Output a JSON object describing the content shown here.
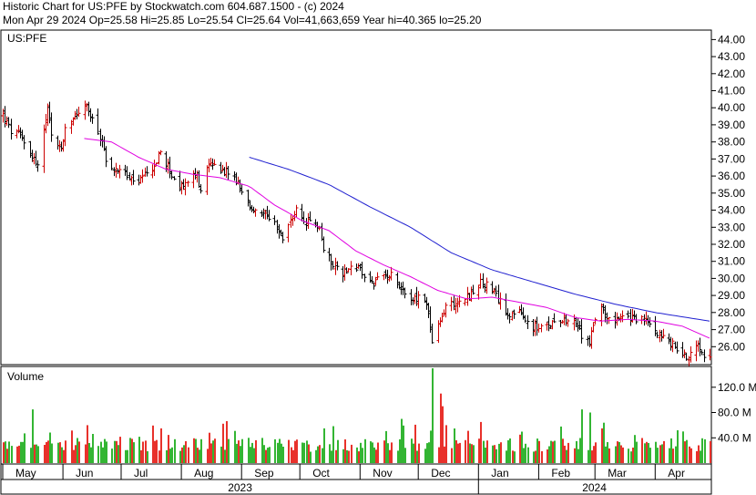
{
  "header": {
    "line1": "Historic Chart for US:PFE by Stockwatch.com 604.687.1500 - (c) 2024",
    "line2": "Mon Apr 29 2024   Op=25.58   Hi=25.85   Lo=25.54   Cl=25.64   Vol=41,663,659   Year hi=40.365   lo=25.20"
  },
  "colors": {
    "up_bar": "#cc0000",
    "down_bar": "#000000",
    "vol_up": "#e8312b",
    "vol_down": "#33b533",
    "ma_short": "#e000e0",
    "ma_long": "#2020d0",
    "frame": "#000000"
  },
  "chart_data": [
    {
      "type": "ohlc",
      "title": "US:PFE",
      "y_axis_side": "right",
      "ylim": [
        25.0,
        44.5
      ],
      "ytick_labels": [
        "26.00",
        "27.00",
        "28.00",
        "29.00",
        "30.00",
        "31.00",
        "32.00",
        "33.00",
        "34.00",
        "35.00",
        "36.00",
        "37.00",
        "38.00",
        "39.00",
        "40.00",
        "41.00",
        "42.00",
        "43.00",
        "44.00"
      ],
      "x_tick_labels": [
        "May",
        "Jun",
        "Jul",
        "Aug",
        "Sep",
        "Oct",
        "Nov",
        "Dec",
        "Jan",
        "Feb",
        "Mar",
        "Apr"
      ],
      "year_labels": [
        "2023",
        "2024"
      ],
      "x_range": [
        "2023-05-01",
        "2024-04-29"
      ],
      "close_anchors": [
        [
          "2023-05-01",
          39.6
        ],
        [
          "2023-05-05",
          38.6
        ],
        [
          "2023-05-10",
          38.4
        ],
        [
          "2023-05-16",
          37.2
        ],
        [
          "2023-05-19",
          36.6
        ],
        [
          "2023-05-22",
          38.6
        ],
        [
          "2023-05-24",
          39.9
        ],
        [
          "2023-05-26",
          38.3
        ],
        [
          "2023-05-31",
          37.6
        ],
        [
          "2023-06-02",
          38.6
        ],
        [
          "2023-06-06",
          39.4
        ],
        [
          "2023-06-09",
          39.8
        ],
        [
          "2023-06-13",
          40.1
        ],
        [
          "2023-06-16",
          39.2
        ],
        [
          "2023-06-20",
          38.3
        ],
        [
          "2023-06-23",
          37.1
        ],
        [
          "2023-06-27",
          36.2
        ],
        [
          "2023-06-30",
          36.6
        ],
        [
          "2023-07-05",
          35.8
        ],
        [
          "2023-07-10",
          35.6
        ],
        [
          "2023-07-14",
          36.1
        ],
        [
          "2023-07-18",
          36.6
        ],
        [
          "2023-07-21",
          37.4
        ],
        [
          "2023-07-26",
          36.3
        ],
        [
          "2023-07-31",
          35.2
        ],
        [
          "2023-08-03",
          35.6
        ],
        [
          "2023-08-08",
          36.1
        ],
        [
          "2023-08-11",
          35.3
        ],
        [
          "2023-08-15",
          36.6
        ],
        [
          "2023-08-18",
          36.7
        ],
        [
          "2023-08-23",
          36.3
        ],
        [
          "2023-08-28",
          35.9
        ],
        [
          "2023-08-31",
          35.2
        ],
        [
          "2023-09-05",
          34.2
        ],
        [
          "2023-09-08",
          33.9
        ],
        [
          "2023-09-13",
          33.6
        ],
        [
          "2023-09-18",
          33.1
        ],
        [
          "2023-09-22",
          32.3
        ],
        [
          "2023-09-26",
          33.4
        ],
        [
          "2023-09-29",
          33.9
        ],
        [
          "2023-10-03",
          33.2
        ],
        [
          "2023-10-06",
          33.3
        ],
        [
          "2023-10-11",
          33.0
        ],
        [
          "2023-10-13",
          31.6
        ],
        [
          "2023-10-18",
          30.9
        ],
        [
          "2023-10-23",
          30.3
        ],
        [
          "2023-10-26",
          30.7
        ],
        [
          "2023-10-31",
          30.6
        ],
        [
          "2023-11-03",
          30.1
        ],
        [
          "2023-11-08",
          29.7
        ],
        [
          "2023-11-13",
          30.1
        ],
        [
          "2023-11-17",
          30.4
        ],
        [
          "2023-11-22",
          29.4
        ],
        [
          "2023-11-28",
          28.8
        ],
        [
          "2023-12-01",
          28.8
        ],
        [
          "2023-12-05",
          28.6
        ],
        [
          "2023-12-08",
          26.3
        ],
        [
          "2023-12-12",
          27.4
        ],
        [
          "2023-12-15",
          28.4
        ],
        [
          "2023-12-20",
          28.6
        ],
        [
          "2023-12-27",
          29.0
        ],
        [
          "2024-01-02",
          29.7
        ],
        [
          "2024-01-05",
          29.6
        ],
        [
          "2024-01-10",
          28.9
        ],
        [
          "2024-01-16",
          28.0
        ],
        [
          "2024-01-22",
          27.9
        ],
        [
          "2024-01-26",
          27.4
        ],
        [
          "2024-01-31",
          27.1
        ],
        [
          "2024-02-05",
          27.1
        ],
        [
          "2024-02-09",
          27.6
        ],
        [
          "2024-02-14",
          27.7
        ],
        [
          "2024-02-20",
          27.3
        ],
        [
          "2024-02-23",
          26.6
        ],
        [
          "2024-02-27",
          26.3
        ],
        [
          "2024-02-29",
          27.3
        ],
        [
          "2024-03-04",
          28.2
        ],
        [
          "2024-03-07",
          27.8
        ],
        [
          "2024-03-12",
          27.6
        ],
        [
          "2024-03-15",
          27.6
        ],
        [
          "2024-03-20",
          27.7
        ],
        [
          "2024-03-25",
          27.6
        ],
        [
          "2024-03-28",
          27.4
        ],
        [
          "2024-04-02",
          26.9
        ],
        [
          "2024-04-05",
          26.5
        ],
        [
          "2024-04-10",
          26.1
        ],
        [
          "2024-04-15",
          25.6
        ],
        [
          "2024-04-18",
          25.4
        ],
        [
          "2024-04-23",
          26.3
        ],
        [
          "2024-04-26",
          25.6
        ],
        [
          "2024-04-29",
          25.64
        ]
      ],
      "ma_short_anchors": [
        [
          "2023-06-12",
          38.2
        ],
        [
          "2023-06-26",
          38.0
        ],
        [
          "2023-07-10",
          37.1
        ],
        [
          "2023-07-24",
          36.4
        ],
        [
          "2023-08-07",
          36.1
        ],
        [
          "2023-08-21",
          35.9
        ],
        [
          "2023-09-05",
          35.4
        ],
        [
          "2023-09-18",
          34.3
        ],
        [
          "2023-10-02",
          33.4
        ],
        [
          "2023-10-16",
          32.8
        ],
        [
          "2023-10-30",
          31.6
        ],
        [
          "2023-11-13",
          30.8
        ],
        [
          "2023-11-27",
          30.1
        ],
        [
          "2023-12-11",
          29.3
        ],
        [
          "2023-12-26",
          28.8
        ],
        [
          "2024-01-08",
          28.9
        ],
        [
          "2024-01-22",
          28.6
        ],
        [
          "2024-02-05",
          28.3
        ],
        [
          "2024-02-20",
          27.7
        ],
        [
          "2024-03-04",
          27.5
        ],
        [
          "2024-03-18",
          27.6
        ],
        [
          "2024-04-01",
          27.5
        ],
        [
          "2024-04-15",
          27.2
        ],
        [
          "2024-04-29",
          26.5
        ]
      ],
      "ma_long_anchors": [
        [
          "2023-09-05",
          37.1
        ],
        [
          "2023-09-25",
          36.4
        ],
        [
          "2023-10-16",
          35.5
        ],
        [
          "2023-11-06",
          34.2
        ],
        [
          "2023-11-27",
          33.0
        ],
        [
          "2023-12-18",
          31.5
        ],
        [
          "2024-01-08",
          30.5
        ],
        [
          "2024-01-29",
          29.8
        ],
        [
          "2024-02-19",
          29.1
        ],
        [
          "2024-03-11",
          28.5
        ],
        [
          "2024-04-01",
          28.0
        ],
        [
          "2024-04-29",
          27.5
        ]
      ]
    },
    {
      "type": "bar",
      "title": "Volume",
      "ylim": [
        0,
        150
      ],
      "ytick_labels": [
        "40.0 M",
        "80.0 M",
        "120.0 M"
      ],
      "volume_spikes": [
        [
          "2023-05-16",
          85
        ],
        [
          "2023-06-13",
          60
        ],
        [
          "2023-07-21",
          55
        ],
        [
          "2023-08-15",
          48
        ],
        [
          "2023-10-13",
          55
        ],
        [
          "2023-11-22",
          70
        ],
        [
          "2023-12-08",
          175
        ],
        [
          "2023-12-12",
          110
        ],
        [
          "2023-12-13",
          90
        ],
        [
          "2023-12-15",
          60
        ],
        [
          "2024-01-02",
          65
        ],
        [
          "2024-01-22",
          45
        ],
        [
          "2024-02-23",
          85
        ],
        [
          "2024-02-27",
          80
        ],
        [
          "2024-03-04",
          55
        ],
        [
          "2024-04-15",
          50
        ]
      ]
    }
  ]
}
